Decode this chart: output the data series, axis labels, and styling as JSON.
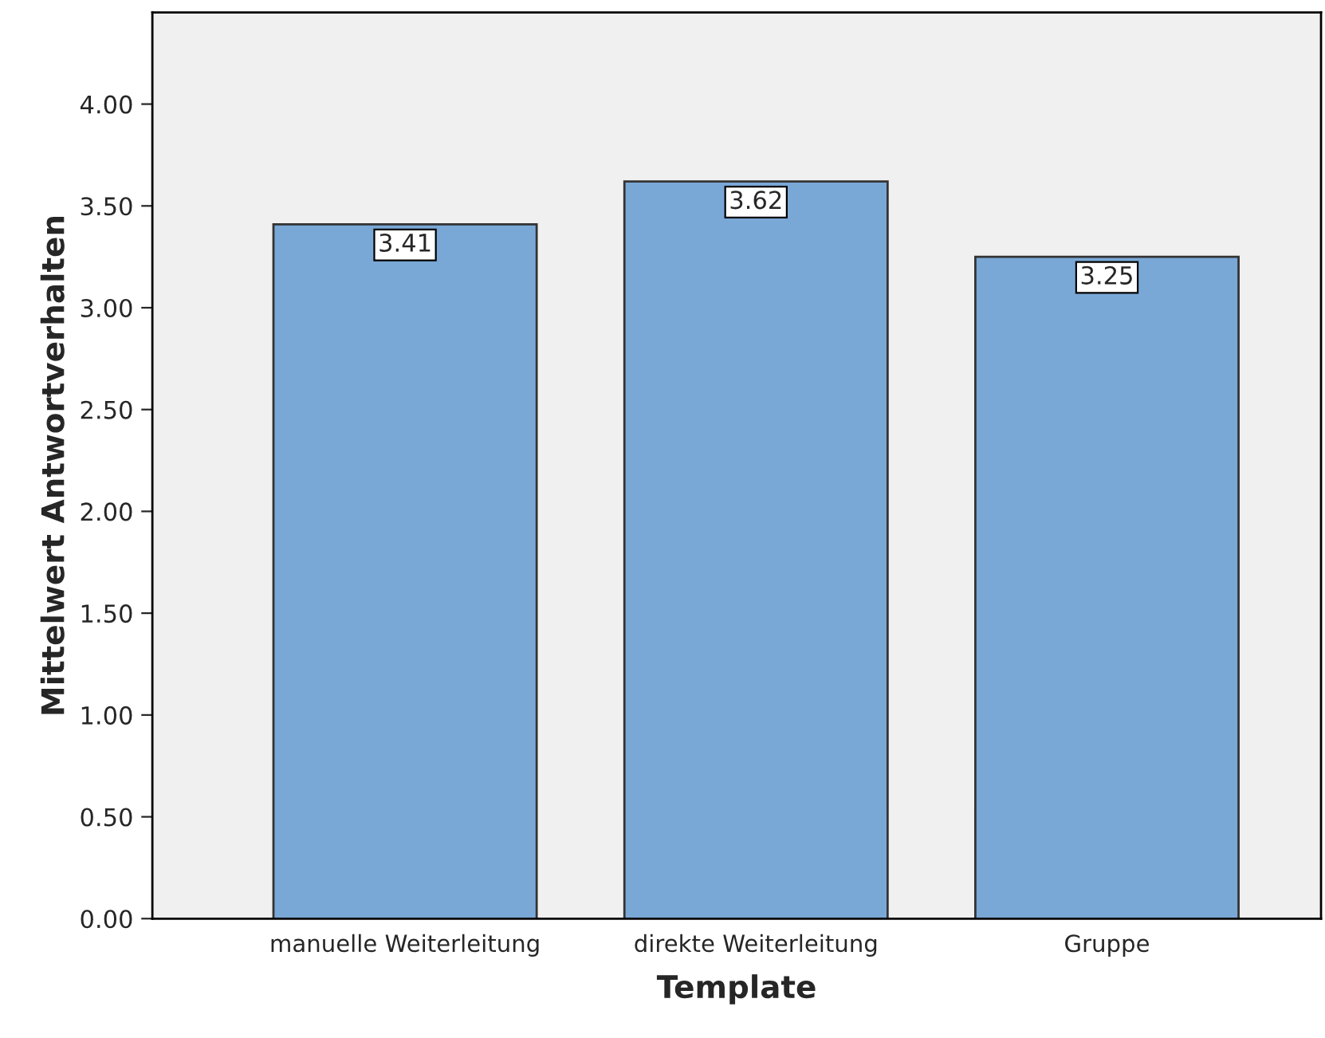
{
  "chart_data": {
    "type": "bar",
    "xlabel": "Template",
    "ylabel": "Mittelwert Antwortverhalten",
    "categories": [
      "manuelle Weiterleitung",
      "direkte Weiterleitung",
      "Gruppe"
    ],
    "values": [
      3.41,
      3.62,
      3.25
    ],
    "color": "#7aa8d6",
    "data_labels": true,
    "grid": false,
    "legend": false,
    "ylim": [
      0,
      4.45
    ],
    "yticks": [
      {
        "value": 0,
        "label": "0.00"
      },
      {
        "value": 0.5,
        "label": "0.50"
      },
      {
        "value": 1,
        "label": "1.00"
      },
      {
        "value": 1.5,
        "label": "1.50"
      },
      {
        "value": 2,
        "label": "2.00"
      },
      {
        "value": 2.5,
        "label": "2.50"
      },
      {
        "value": 3,
        "label": "3.00"
      },
      {
        "value": 3.5,
        "label": "3.50"
      },
      {
        "value": 4,
        "label": "4.00"
      }
    ]
  }
}
